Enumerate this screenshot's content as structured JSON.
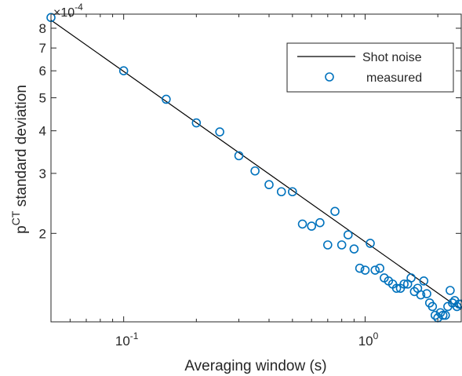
{
  "chart_data": {
    "type": "scatter",
    "title": "",
    "xlabel": "Averaging window (s)",
    "ylabel": {
      "base": "p",
      "superscript": "CT",
      "rest": " standard deviation"
    },
    "x_scale": "log",
    "y_scale": "log",
    "xlim": [
      0.05,
      2.5
    ],
    "ylim": [
      0.00011,
      0.00088
    ],
    "y_multiplier": {
      "prefix": "×10",
      "exponent": "-4"
    },
    "x_ticks": [
      {
        "value": 0.1,
        "base": "10",
        "exp": "-1"
      },
      {
        "value": 1,
        "base": "10",
        "exp": "0"
      }
    ],
    "y_ticks": [
      {
        "value": 0.0002,
        "label": "2"
      },
      {
        "value": 0.0003,
        "label": "3"
      },
      {
        "value": 0.0004,
        "label": "4"
      },
      {
        "value": 0.0005,
        "label": "5"
      },
      {
        "value": 0.0006,
        "label": "6"
      },
      {
        "value": 0.0007,
        "label": "7"
      },
      {
        "value": 0.0008,
        "label": "8"
      }
    ],
    "legend": {
      "position": "top-right",
      "entries": [
        {
          "label": "Shot noise",
          "style": "line",
          "color": "#000000"
        },
        {
          "label": "measured",
          "style": "circle",
          "color": "#0072BD"
        }
      ]
    },
    "series": [
      {
        "name": "Shot noise",
        "style": "line",
        "color": "#000000",
        "x": [
          0.05,
          2.5
        ],
        "y": [
          0.000845,
          0.0001195
        ]
      },
      {
        "name": "measured",
        "style": "circle",
        "color": "#0072BD",
        "x": [
          0.05,
          0.1,
          0.15,
          0.2,
          0.25,
          0.3,
          0.35,
          0.4,
          0.45,
          0.5,
          0.55,
          0.6,
          0.65,
          0.7,
          0.75,
          0.8,
          0.85,
          0.9,
          0.95,
          1.0,
          1.05,
          1.1,
          1.15,
          1.2,
          1.25,
          1.3,
          1.35,
          1.4,
          1.45,
          1.5,
          1.55,
          1.6,
          1.65,
          1.7,
          1.75,
          1.8,
          1.85,
          1.9,
          1.95,
          2.0,
          2.05,
          2.1,
          2.15,
          2.2,
          2.25,
          2.3,
          2.35,
          2.4,
          2.45,
          2.5
        ],
        "y": [
          0.00086,
          0.0006,
          0.000495,
          0.000422,
          0.000397,
          0.000338,
          0.000305,
          0.000278,
          0.000265,
          0.000265,
          0.000213,
          0.00021,
          0.000215,
          0.000185,
          0.000232,
          0.000185,
          0.000198,
          0.00018,
          0.000158,
          0.000156,
          0.000187,
          0.000156,
          0.000158,
          0.000148,
          0.000145,
          0.000142,
          0.000138,
          0.000138,
          0.000142,
          0.000142,
          0.000148,
          0.000135,
          0.000138,
          0.000132,
          0.000145,
          0.000133,
          0.000125,
          0.000122,
          0.000115,
          0.000113,
          0.000117,
          0.000115,
          0.000115,
          0.000122,
          0.000136,
          0.000125,
          0.000127,
          0.000122,
          0.000124,
          0.000124
        ]
      }
    ]
  }
}
